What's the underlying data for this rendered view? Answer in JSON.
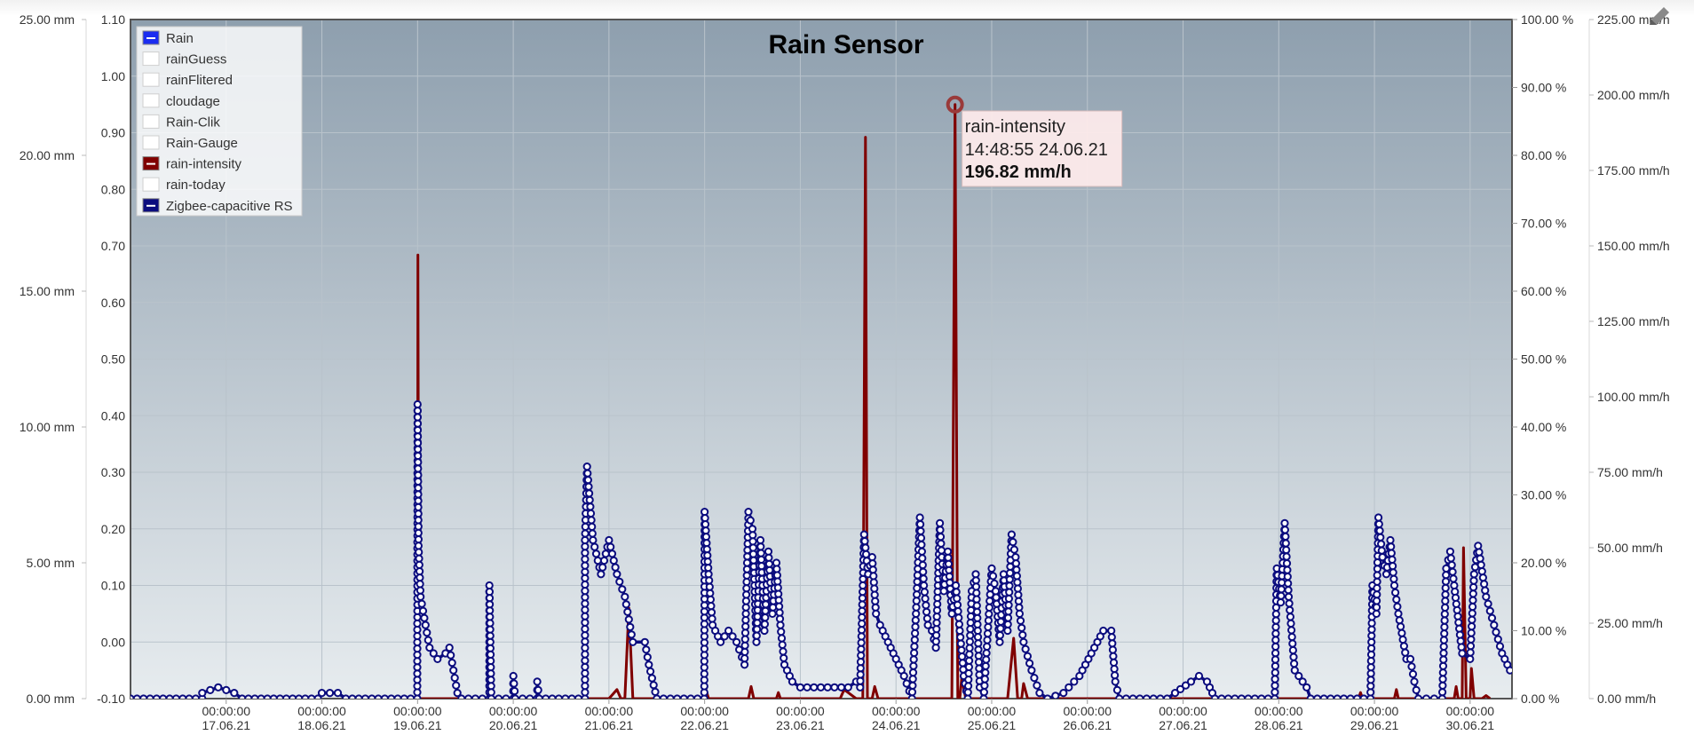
{
  "chart_data": {
    "type": "line",
    "title": "Rain Sensor",
    "colors": {
      "Rain": "#1a2cf0",
      "rain-intensity": "#800000",
      "Zigbee-capacitive RS": "#0b0c7e",
      "plot_top": "#8e9fae",
      "plot_bottom": "#e7ecef"
    },
    "legend": {
      "placement": "top-left",
      "items": [
        {
          "name": "Rain",
          "enabled": true
        },
        {
          "name": "rainGuess",
          "enabled": false
        },
        {
          "name": "rainFlitered",
          "enabled": false
        },
        {
          "name": "cloudage",
          "enabled": false
        },
        {
          "name": "Rain-Clik",
          "enabled": false
        },
        {
          "name": "Rain-Gauge",
          "enabled": false
        },
        {
          "name": "rain-intensity",
          "enabled": true
        },
        {
          "name": "rain-today",
          "enabled": false
        },
        {
          "name": "Zigbee-capacitive RS",
          "enabled": true
        }
      ]
    },
    "grid": true,
    "axes": {
      "mm": {
        "range": [
          0,
          25
        ],
        "ticks": [
          "0.00 mm",
          "5.00 mm",
          "10.00 mm",
          "15.00 mm",
          "20.00 mm",
          "25.00 mm"
        ]
      },
      "value": {
        "range": [
          -0.1,
          1.1
        ],
        "ticks": [
          "-0.10",
          "0.00",
          "0.10",
          "0.20",
          "0.30",
          "0.40",
          "0.50",
          "0.60",
          "0.70",
          "0.80",
          "0.90",
          "1.00",
          "1.10"
        ]
      },
      "percent": {
        "range": [
          0,
          100
        ],
        "ticks": [
          "0.00 %",
          "10.00 %",
          "20.00 %",
          "30.00 %",
          "40.00 %",
          "50.00 %",
          "60.00 %",
          "70.00 %",
          "80.00 %",
          "90.00 %",
          "100.00 %"
        ]
      },
      "intensity": {
        "range": [
          0,
          225
        ],
        "ticks": [
          "0.00 mm/h",
          "25.00 mm/h",
          "50.00 mm/h",
          "75.00 mm/h",
          "100.00 mm/h",
          "125.00 mm/h",
          "150.00 mm/h",
          "175.00 mm/h",
          "200.00 mm/h",
          "225.00 mm/h"
        ]
      },
      "x": {
        "range": [
          "16.06.21 00:00",
          "30.06.21 10:30"
        ],
        "ticks": [
          {
            "time": "00:00:00",
            "date": "17.06.21"
          },
          {
            "time": "00:00:00",
            "date": "18.06.21"
          },
          {
            "time": "00:00:00",
            "date": "19.06.21"
          },
          {
            "time": "00:00:00",
            "date": "20.06.21"
          },
          {
            "time": "00:00:00",
            "date": "21.06.21"
          },
          {
            "time": "00:00:00",
            "date": "22.06.21"
          },
          {
            "time": "00:00:00",
            "date": "23.06.21"
          },
          {
            "time": "00:00:00",
            "date": "24.06.21"
          },
          {
            "time": "00:00:00",
            "date": "25.06.21"
          },
          {
            "time": "00:00:00",
            "date": "26.06.21"
          },
          {
            "time": "00:00:00",
            "date": "27.06.21"
          },
          {
            "time": "00:00:00",
            "date": "28.06.21"
          },
          {
            "time": "00:00:00",
            "date": "29.06.21"
          },
          {
            "time": "00:00:00",
            "date": "30.06.21"
          }
        ]
      }
    },
    "series": [
      {
        "name": "rain-intensity",
        "axis": "intensity",
        "points": [
          [
            "19.06.21 00:00",
            0
          ],
          [
            "19.06.21 00:05",
            147
          ],
          [
            "19.06.21 00:20",
            0
          ],
          [
            "21.06.21 00:00",
            0
          ],
          [
            "21.06.21 02:00",
            3
          ],
          [
            "21.06.21 03:00",
            0
          ],
          [
            "21.06.21 04:00",
            0
          ],
          [
            "21.06.21 05:00",
            30
          ],
          [
            "21.06.21 06:00",
            0
          ],
          [
            "22.06.21 00:00",
            0
          ],
          [
            "22.06.21 00:20",
            3
          ],
          [
            "22.06.21 01:00",
            0
          ],
          [
            "22.06.21 11:00",
            0
          ],
          [
            "22.06.21 11:40",
            4
          ],
          [
            "22.06.21 12:20",
            0
          ],
          [
            "22.06.21 18:00",
            0
          ],
          [
            "22.06.21 18:30",
            2
          ],
          [
            "22.06.21 19:00",
            0
          ],
          [
            "23.06.21 10:00",
            0
          ],
          [
            "23.06.21 11:00",
            3
          ],
          [
            "23.06.21 14:00",
            0
          ],
          [
            "23.06.21 15:40",
            0
          ],
          [
            "23.06.21 16:20",
            186
          ],
          [
            "23.06.21 16:50",
            0
          ],
          [
            "23.06.21 18:00",
            0
          ],
          [
            "23.06.21 18:40",
            4
          ],
          [
            "23.06.21 19:30",
            0
          ],
          [
            "24.06.21 14:00",
            0
          ],
          [
            "24.06.21 14:48",
            196.82
          ],
          [
            "24.06.21 15:30",
            0
          ],
          [
            "24.06.21 16:00",
            0
          ],
          [
            "24.06.21 16:30",
            7
          ],
          [
            "24.06.21 17:30",
            0
          ],
          [
            "25.06.21 04:00",
            0
          ],
          [
            "25.06.21 05:30",
            20
          ],
          [
            "25.06.21 06:30",
            0
          ],
          [
            "25.06.21 07:30",
            0
          ],
          [
            "25.06.21 08:00",
            5
          ],
          [
            "25.06.21 09:00",
            0
          ],
          [
            "28.06.21 20:00",
            0
          ],
          [
            "28.06.21 20:30",
            2
          ],
          [
            "28.06.21 21:00",
            0
          ],
          [
            "29.06.21 05:00",
            0
          ],
          [
            "29.06.21 05:30",
            3
          ],
          [
            "29.06.21 06:00",
            0
          ],
          [
            "29.06.21 20:00",
            0
          ],
          [
            "29.06.21 20:30",
            4
          ],
          [
            "29.06.21 21:00",
            0
          ],
          [
            "29.06.21 22:00",
            0
          ],
          [
            "29.06.21 22:20",
            50
          ],
          [
            "29.06.21 23:00",
            0
          ],
          [
            "30.06.21 00:00",
            0
          ],
          [
            "30.06.21 00:20",
            10
          ],
          [
            "30.06.21 01:00",
            0
          ],
          [
            "30.06.21 03:00",
            0
          ],
          [
            "30.06.21 04:00",
            1
          ],
          [
            "30.06.21 05:00",
            0
          ]
        ]
      },
      {
        "name": "Zigbee-capacitive RS",
        "axis": "value",
        "points": [
          [
            "16.06.21 00:00",
            -0.1
          ],
          [
            "16.06.21 18:00",
            -0.1
          ],
          [
            "16.06.21 18:00",
            -0.09
          ],
          [
            "16.06.21 22:00",
            -0.08
          ],
          [
            "17.06.21 02:00",
            -0.09
          ],
          [
            "17.06.21 04:00",
            -0.1
          ],
          [
            "17.06.21 23:00",
            -0.1
          ],
          [
            "18.06.21 00:00",
            -0.09
          ],
          [
            "18.06.21 04:00",
            -0.09
          ],
          [
            "18.06.21 06:00",
            -0.1
          ],
          [
            "18.06.21 23:55",
            -0.1
          ],
          [
            "19.06.21 00:00",
            0.42
          ],
          [
            "19.06.21 00:15",
            0.17
          ],
          [
            "19.06.21 00:45",
            0.08
          ],
          [
            "19.06.21 02:00",
            0.03
          ],
          [
            "19.06.21 03:00",
            -0.01
          ],
          [
            "19.06.21 05:00",
            -0.03
          ],
          [
            "19.06.21 07:00",
            -0.02
          ],
          [
            "19.06.21 08:00",
            -0.01
          ],
          [
            "19.06.21 09:00",
            -0.05
          ],
          [
            "19.06.21 10:00",
            -0.09
          ],
          [
            "19.06.21 11:00",
            -0.1
          ],
          [
            "19.06.21 18:00",
            -0.1
          ],
          [
            "19.06.21 18:01",
            0.1
          ],
          [
            "19.06.21 18:30",
            -0.1
          ],
          [
            "20.06.21 00:00",
            -0.1
          ],
          [
            "20.06.21 00:01",
            -0.06
          ],
          [
            "20.06.21 00:30",
            -0.1
          ],
          [
            "20.06.21 06:00",
            -0.1
          ],
          [
            "20.06.21 06:01",
            -0.07
          ],
          [
            "20.06.21 06:30",
            -0.1
          ],
          [
            "20.06.21 17:59",
            -0.1
          ],
          [
            "20.06.21 18:00",
            0.18
          ],
          [
            "20.06.21 18:30",
            0.31
          ],
          [
            "20.06.21 20:00",
            0.18
          ],
          [
            "20.06.21 22:00",
            0.12
          ],
          [
            "21.06.21 00:00",
            0.18
          ],
          [
            "21.06.21 02:00",
            0.12
          ],
          [
            "21.06.21 04:00",
            0.08
          ],
          [
            "21.06.21 05:00",
            0.04
          ],
          [
            "21.06.21 06:00",
            0.0
          ],
          [
            "21.06.21 09:00",
            0.0
          ],
          [
            "21.06.21 10:00",
            -0.04
          ],
          [
            "21.06.21 12:00",
            -0.1
          ],
          [
            "21.06.21 23:55",
            -0.1
          ],
          [
            "22.06.21 00:00",
            0.23
          ],
          [
            "22.06.21 01:00",
            0.12
          ],
          [
            "22.06.21 02:00",
            0.03
          ],
          [
            "22.06.21 04:00",
            0.0
          ],
          [
            "22.06.21 06:00",
            0.02
          ],
          [
            "22.06.21 08:00",
            0.0
          ],
          [
            "22.06.21 10:00",
            -0.04
          ],
          [
            "22.06.21 11:00",
            0.23
          ],
          [
            "22.06.21 12:00",
            0.2
          ],
          [
            "22.06.21 13:00",
            0.0
          ],
          [
            "22.06.21 14:00",
            0.18
          ],
          [
            "22.06.21 15:00",
            0.02
          ],
          [
            "22.06.21 16:00",
            0.16
          ],
          [
            "22.06.21 17:00",
            0.05
          ],
          [
            "22.06.21 18:00",
            0.14
          ],
          [
            "22.06.21 19:00",
            0.03
          ],
          [
            "22.06.21 20:00",
            -0.04
          ],
          [
            "22.06.21 22:00",
            -0.07
          ],
          [
            "23.06.21 00:00",
            -0.08
          ],
          [
            "23.06.21 12:00",
            -0.08
          ],
          [
            "23.06.21 14:00",
            -0.07
          ],
          [
            "23.06.21 15:00",
            -0.08
          ],
          [
            "23.06.21 16:00",
            0.19
          ],
          [
            "23.06.21 17:00",
            0.12
          ],
          [
            "23.06.21 18:00",
            0.15
          ],
          [
            "23.06.21 19:00",
            0.05
          ],
          [
            "23.06.21 20:00",
            0.03
          ],
          [
            "23.06.21 22:00",
            0.0
          ],
          [
            "24.06.21 00:00",
            -0.03
          ],
          [
            "24.06.21 02:00",
            -0.06
          ],
          [
            "24.06.21 04:00",
            -0.1
          ],
          [
            "24.06.21 05:00",
            0.05
          ],
          [
            "24.06.21 06:00",
            0.22
          ],
          [
            "24.06.21 07:00",
            0.1
          ],
          [
            "24.06.21 08:00",
            0.03
          ],
          [
            "24.06.21 09:00",
            0.02
          ],
          [
            "24.06.21 10:00",
            -0.01
          ],
          [
            "24.06.21 11:00",
            0.21
          ],
          [
            "24.06.21 12:00",
            0.09
          ],
          [
            "24.06.21 13:00",
            0.16
          ],
          [
            "24.06.21 14:00",
            0.05
          ],
          [
            "24.06.21 15:00",
            0.1
          ],
          [
            "24.06.21 16:00",
            0.02
          ],
          [
            "24.06.21 17:00",
            -0.06
          ],
          [
            "24.06.21 18:00",
            -0.1
          ],
          [
            "24.06.21 19:00",
            0.09
          ],
          [
            "24.06.21 20:00",
            0.12
          ],
          [
            "24.06.21 21:00",
            -0.08
          ],
          [
            "24.06.21 22:00",
            -0.1
          ],
          [
            "25.06.21 00:00",
            0.13
          ],
          [
            "25.06.21 01:00",
            0.09
          ],
          [
            "25.06.21 02:00",
            0.0
          ],
          [
            "25.06.21 03:00",
            0.12
          ],
          [
            "25.06.21 04:00",
            0.02
          ],
          [
            "25.06.21 05:00",
            0.19
          ],
          [
            "25.06.21 06:00",
            0.15
          ],
          [
            "25.06.21 07:00",
            0.05
          ],
          [
            "25.06.21 08:00",
            0.0
          ],
          [
            "25.06.21 10:00",
            -0.05
          ],
          [
            "25.06.21 12:00",
            -0.09
          ],
          [
            "25.06.21 14:00",
            -0.1
          ],
          [
            "25.06.21 18:00",
            -0.09
          ],
          [
            "25.06.21 22:00",
            -0.06
          ],
          [
            "26.06.21 01:00",
            -0.02
          ],
          [
            "26.06.21 04:00",
            0.02
          ],
          [
            "26.06.21 06:00",
            0.02
          ],
          [
            "26.06.21 07:00",
            -0.07
          ],
          [
            "26.06.21 08:00",
            -0.1
          ],
          [
            "26.06.21 20:00",
            -0.1
          ],
          [
            "26.06.21 22:00",
            -0.09
          ],
          [
            "27.06.21 02:00",
            -0.07
          ],
          [
            "27.06.21 04:00",
            -0.06
          ],
          [
            "27.06.21 06:00",
            -0.07
          ],
          [
            "27.06.21 08:00",
            -0.1
          ],
          [
            "27.06.21 23:00",
            -0.1
          ],
          [
            "27.06.21 23:30",
            0.13
          ],
          [
            "28.06.21 00:30",
            0.07
          ],
          [
            "28.06.21 01:30",
            0.21
          ],
          [
            "28.06.21 02:30",
            0.08
          ],
          [
            "28.06.21 04:00",
            -0.05
          ],
          [
            "28.06.21 07:00",
            -0.08
          ],
          [
            "28.06.21 08:00",
            -0.1
          ],
          [
            "28.06.21 23:00",
            -0.1
          ],
          [
            "28.06.21 23:30",
            0.1
          ],
          [
            "29.06.21 00:30",
            0.05
          ],
          [
            "29.06.21 01:00",
            0.22
          ],
          [
            "29.06.21 02:00",
            0.15
          ],
          [
            "29.06.21 03:00",
            0.12
          ],
          [
            "29.06.21 04:00",
            0.18
          ],
          [
            "29.06.21 05:00",
            0.1
          ],
          [
            "29.06.21 06:00",
            0.05
          ],
          [
            "29.06.21 08:00",
            -0.03
          ],
          [
            "29.06.21 09:00",
            -0.03
          ],
          [
            "29.06.21 10:00",
            -0.07
          ],
          [
            "29.06.21 11:00",
            -0.1
          ],
          [
            "29.06.21 17:00",
            -0.1
          ],
          [
            "29.06.21 18:00",
            0.13
          ],
          [
            "29.06.21 19:00",
            0.16
          ],
          [
            "29.06.21 20:00",
            0.1
          ],
          [
            "29.06.21 22:00",
            -0.02
          ],
          [
            "30.06.21 00:00",
            -0.03
          ],
          [
            "30.06.21 01:00",
            0.12
          ],
          [
            "30.06.21 02:00",
            0.17
          ],
          [
            "30.06.21 04:00",
            0.08
          ],
          [
            "30.06.21 06:00",
            0.03
          ],
          [
            "30.06.21 08:00",
            -0.02
          ],
          [
            "30.06.21 10:00",
            -0.05
          ]
        ]
      }
    ],
    "tooltip": {
      "series": "rain-intensity",
      "time": "14:48:55 24.06.21",
      "value": "196.82 mm/h"
    }
  }
}
